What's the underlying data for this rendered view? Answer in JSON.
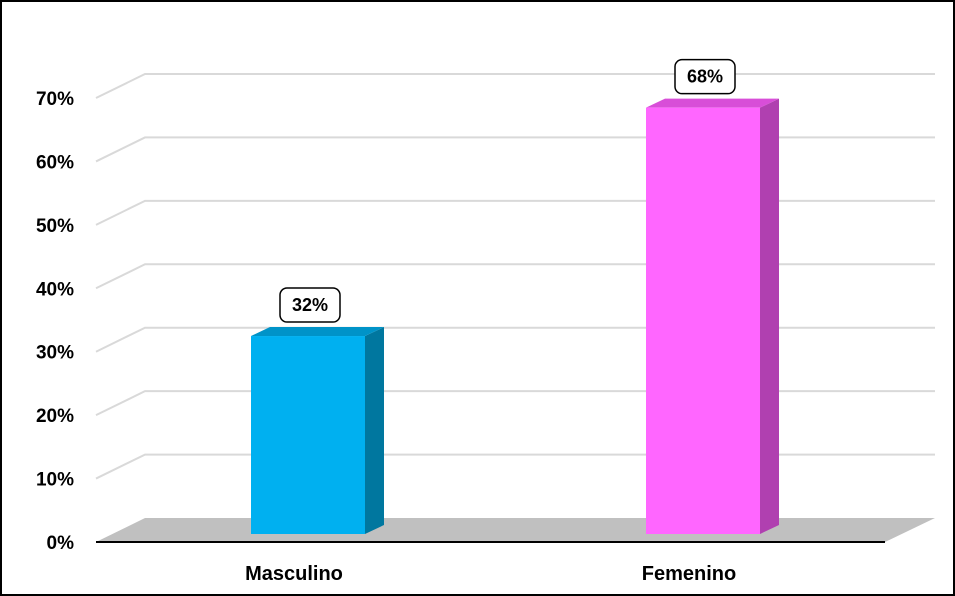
{
  "chart_data": {
    "type": "bar",
    "categories": [
      "Masculino",
      "Femenino"
    ],
    "values": [
      32,
      68
    ],
    "data_labels": [
      "32%",
      "68%"
    ],
    "ylim": [
      0,
      70
    ],
    "yticks": [
      0,
      10,
      20,
      30,
      40,
      50,
      60,
      70
    ],
    "ytick_labels": [
      "0%",
      "10%",
      "20%",
      "30%",
      "40%",
      "50%",
      "60%",
      "70%"
    ],
    "grid": true,
    "legend": "none",
    "colors": {
      "Masculino": {
        "front": "#00b0f0",
        "side": "#00779f",
        "top": "#0093c8"
      },
      "Femenino": {
        "front": "#ff66ff",
        "side": "#b040b0",
        "top": "#d84ed8"
      },
      "floor": "#c0c0c0",
      "gridline": "#d9d9d9",
      "axis": "#000000"
    }
  }
}
